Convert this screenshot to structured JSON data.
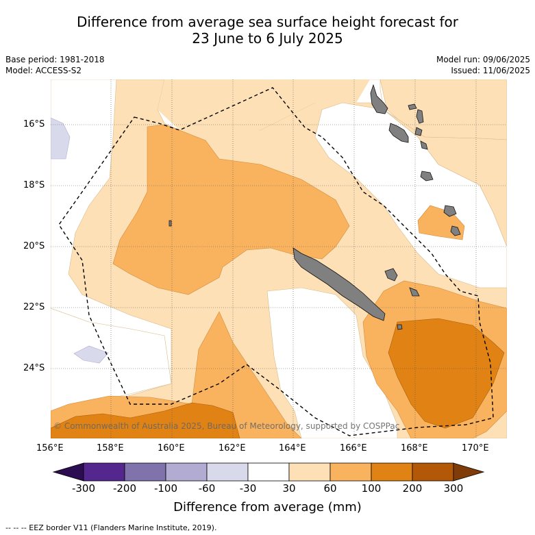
{
  "header": {
    "title_line1": "Difference from average sea surface height forecast for",
    "title_line2": "23 June to 6 July 2025",
    "base_period": "Base period: 1981-2018",
    "model": "Model: ACCESS-S2",
    "model_run": "Model run: 09/06/2025",
    "issued": "Issued: 11/06/2025"
  },
  "map": {
    "lat_labels": [
      "16°S",
      "18°S",
      "20°S",
      "22°S",
      "24°S"
    ],
    "lon_labels": [
      "156°E",
      "158°E",
      "160°E",
      "162°E",
      "164°E",
      "166°E",
      "168°E",
      "170°E"
    ],
    "copyright": "© Commonwealth of Australia 2025, Bureau of Meteorology, supported by COSPPac"
  },
  "legend": {
    "ticks": [
      "-300",
      "-200",
      "-100",
      "-60",
      "-30",
      "30",
      "60",
      "100",
      "200",
      "300"
    ],
    "colors": [
      "#2d0d52",
      "#54278f",
      "#8073ac",
      "#b2abd2",
      "#d8daeb",
      "#ffffff",
      "#fee0b6",
      "#f9b35e",
      "#e08214",
      "#b35806",
      "#7f3b08"
    ],
    "title": "Difference from average (mm)"
  },
  "footnote": "--  --  -- EEZ border V11 (Flanders Marine Institute, 2019)."
}
